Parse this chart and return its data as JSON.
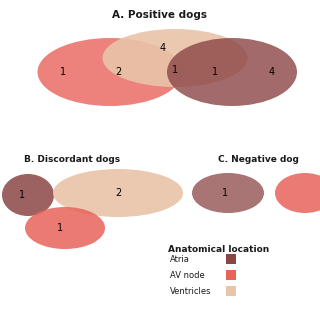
{
  "title_A": "A. Positive dogs",
  "title_B": "B. Discordant dogs",
  "title_C": "C. Negative dog",
  "legend_title": "Anatomical location",
  "legend_items": [
    "Atria",
    "AV node",
    "Ventricles"
  ],
  "color_atria": "#8B4545",
  "color_av_node": "#E8635A",
  "color_ventricles": "#E8C4A8",
  "bg_color": "#FFFFFF",
  "text_color": "#1a1a1a"
}
